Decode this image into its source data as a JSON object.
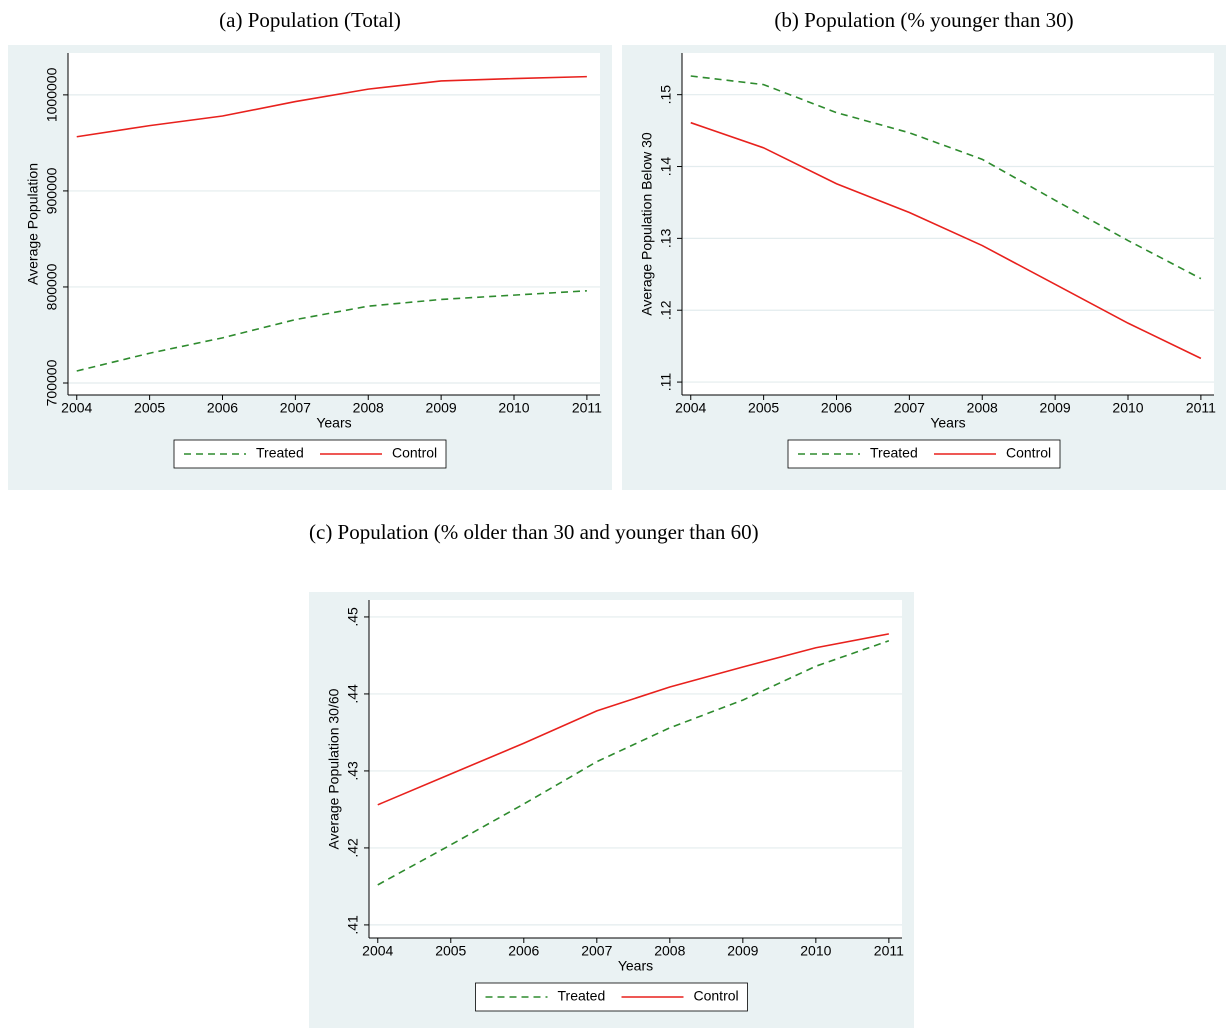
{
  "chart_data": [
    {
      "type": "line",
      "title": "(a) Population (Total)",
      "x": [
        2004,
        2005,
        2006,
        2007,
        2008,
        2009,
        2010,
        2011
      ],
      "xlim": [
        2003.88,
        2011.18
      ],
      "xticks": [
        2004,
        2005,
        2006,
        2007,
        2008,
        2009,
        2010,
        2011
      ],
      "ylim": [
        687500,
        1043600
      ],
      "yticks": [
        700000,
        800000,
        900000,
        1000000
      ],
      "xlabel": "Years",
      "ylabel": "Average Population",
      "grid": true,
      "series": [
        {
          "name": "Treated",
          "color": "#2e8b2e",
          "linestyle": "dashed",
          "values": [
            712500,
            731000,
            747000,
            766000,
            780000,
            787000,
            791500,
            796000
          ]
        },
        {
          "name": "Control",
          "color": "#e8211d",
          "linestyle": "solid",
          "values": [
            956400,
            968000,
            978000,
            993000,
            1006000,
            1014500,
            1017000,
            1019000
          ]
        }
      ]
    },
    {
      "type": "line",
      "title": "(b) Population (% younger than 30)",
      "x": [
        2004,
        2005,
        2006,
        2007,
        2008,
        2009,
        2010,
        2011
      ],
      "xlim": [
        2003.88,
        2011.18
      ],
      "xticks": [
        2004,
        2005,
        2006,
        2007,
        2008,
        2009,
        2010,
        2011
      ],
      "ylim": [
        0.1082,
        0.1558
      ],
      "yticks": [
        {
          "value": 0.11,
          "label": ".11"
        },
        {
          "value": 0.12,
          "label": ".12"
        },
        {
          "value": 0.13,
          "label": ".13"
        },
        {
          "value": 0.14,
          "label": ".14"
        },
        {
          "value": 0.15,
          "label": ".15"
        }
      ],
      "xlabel": "Years",
      "ylabel": "Average Population Below 30",
      "grid": true,
      "series": [
        {
          "name": "Treated",
          "color": "#2e8b2e",
          "linestyle": "dashed",
          "values": [
            0.1526,
            0.1514,
            0.1475,
            0.1447,
            0.141,
            0.1353,
            0.1297,
            0.1244
          ]
        },
        {
          "name": "Control",
          "color": "#e8211d",
          "linestyle": "solid",
          "values": [
            0.1461,
            0.1426,
            0.1376,
            0.1336,
            0.129,
            0.1236,
            0.1182,
            0.1133
          ]
        }
      ]
    },
    {
      "type": "line",
      "title": "(c) Population (% older than 30 and younger than 60)",
      "x": [
        2004,
        2005,
        2006,
        2007,
        2008,
        2009,
        2010,
        2011
      ],
      "xlim": [
        2003.88,
        2011.18
      ],
      "xticks": [
        2004,
        2005,
        2006,
        2007,
        2008,
        2009,
        2010,
        2011
      ],
      "ylim": [
        0.4083,
        0.4522
      ],
      "yticks": [
        {
          "value": 0.41,
          "label": ".41"
        },
        {
          "value": 0.42,
          "label": ".42"
        },
        {
          "value": 0.43,
          "label": ".43"
        },
        {
          "value": 0.44,
          "label": ".44"
        },
        {
          "value": 0.45,
          "label": ".45"
        }
      ],
      "xlabel": "Years",
      "ylabel": "Average Population 30/60",
      "grid": true,
      "series": [
        {
          "name": "Treated",
          "color": "#2e8b2e",
          "linestyle": "dashed",
          "values": [
            0.4152,
            0.4204,
            0.4257,
            0.4312,
            0.4356,
            0.4392,
            0.4436,
            0.4469
          ]
        },
        {
          "name": "Control",
          "color": "#e8211d",
          "linestyle": "solid",
          "values": [
            0.4256,
            0.4296,
            0.4336,
            0.4378,
            0.4409,
            0.4435,
            0.446,
            0.4478
          ]
        }
      ]
    }
  ]
}
